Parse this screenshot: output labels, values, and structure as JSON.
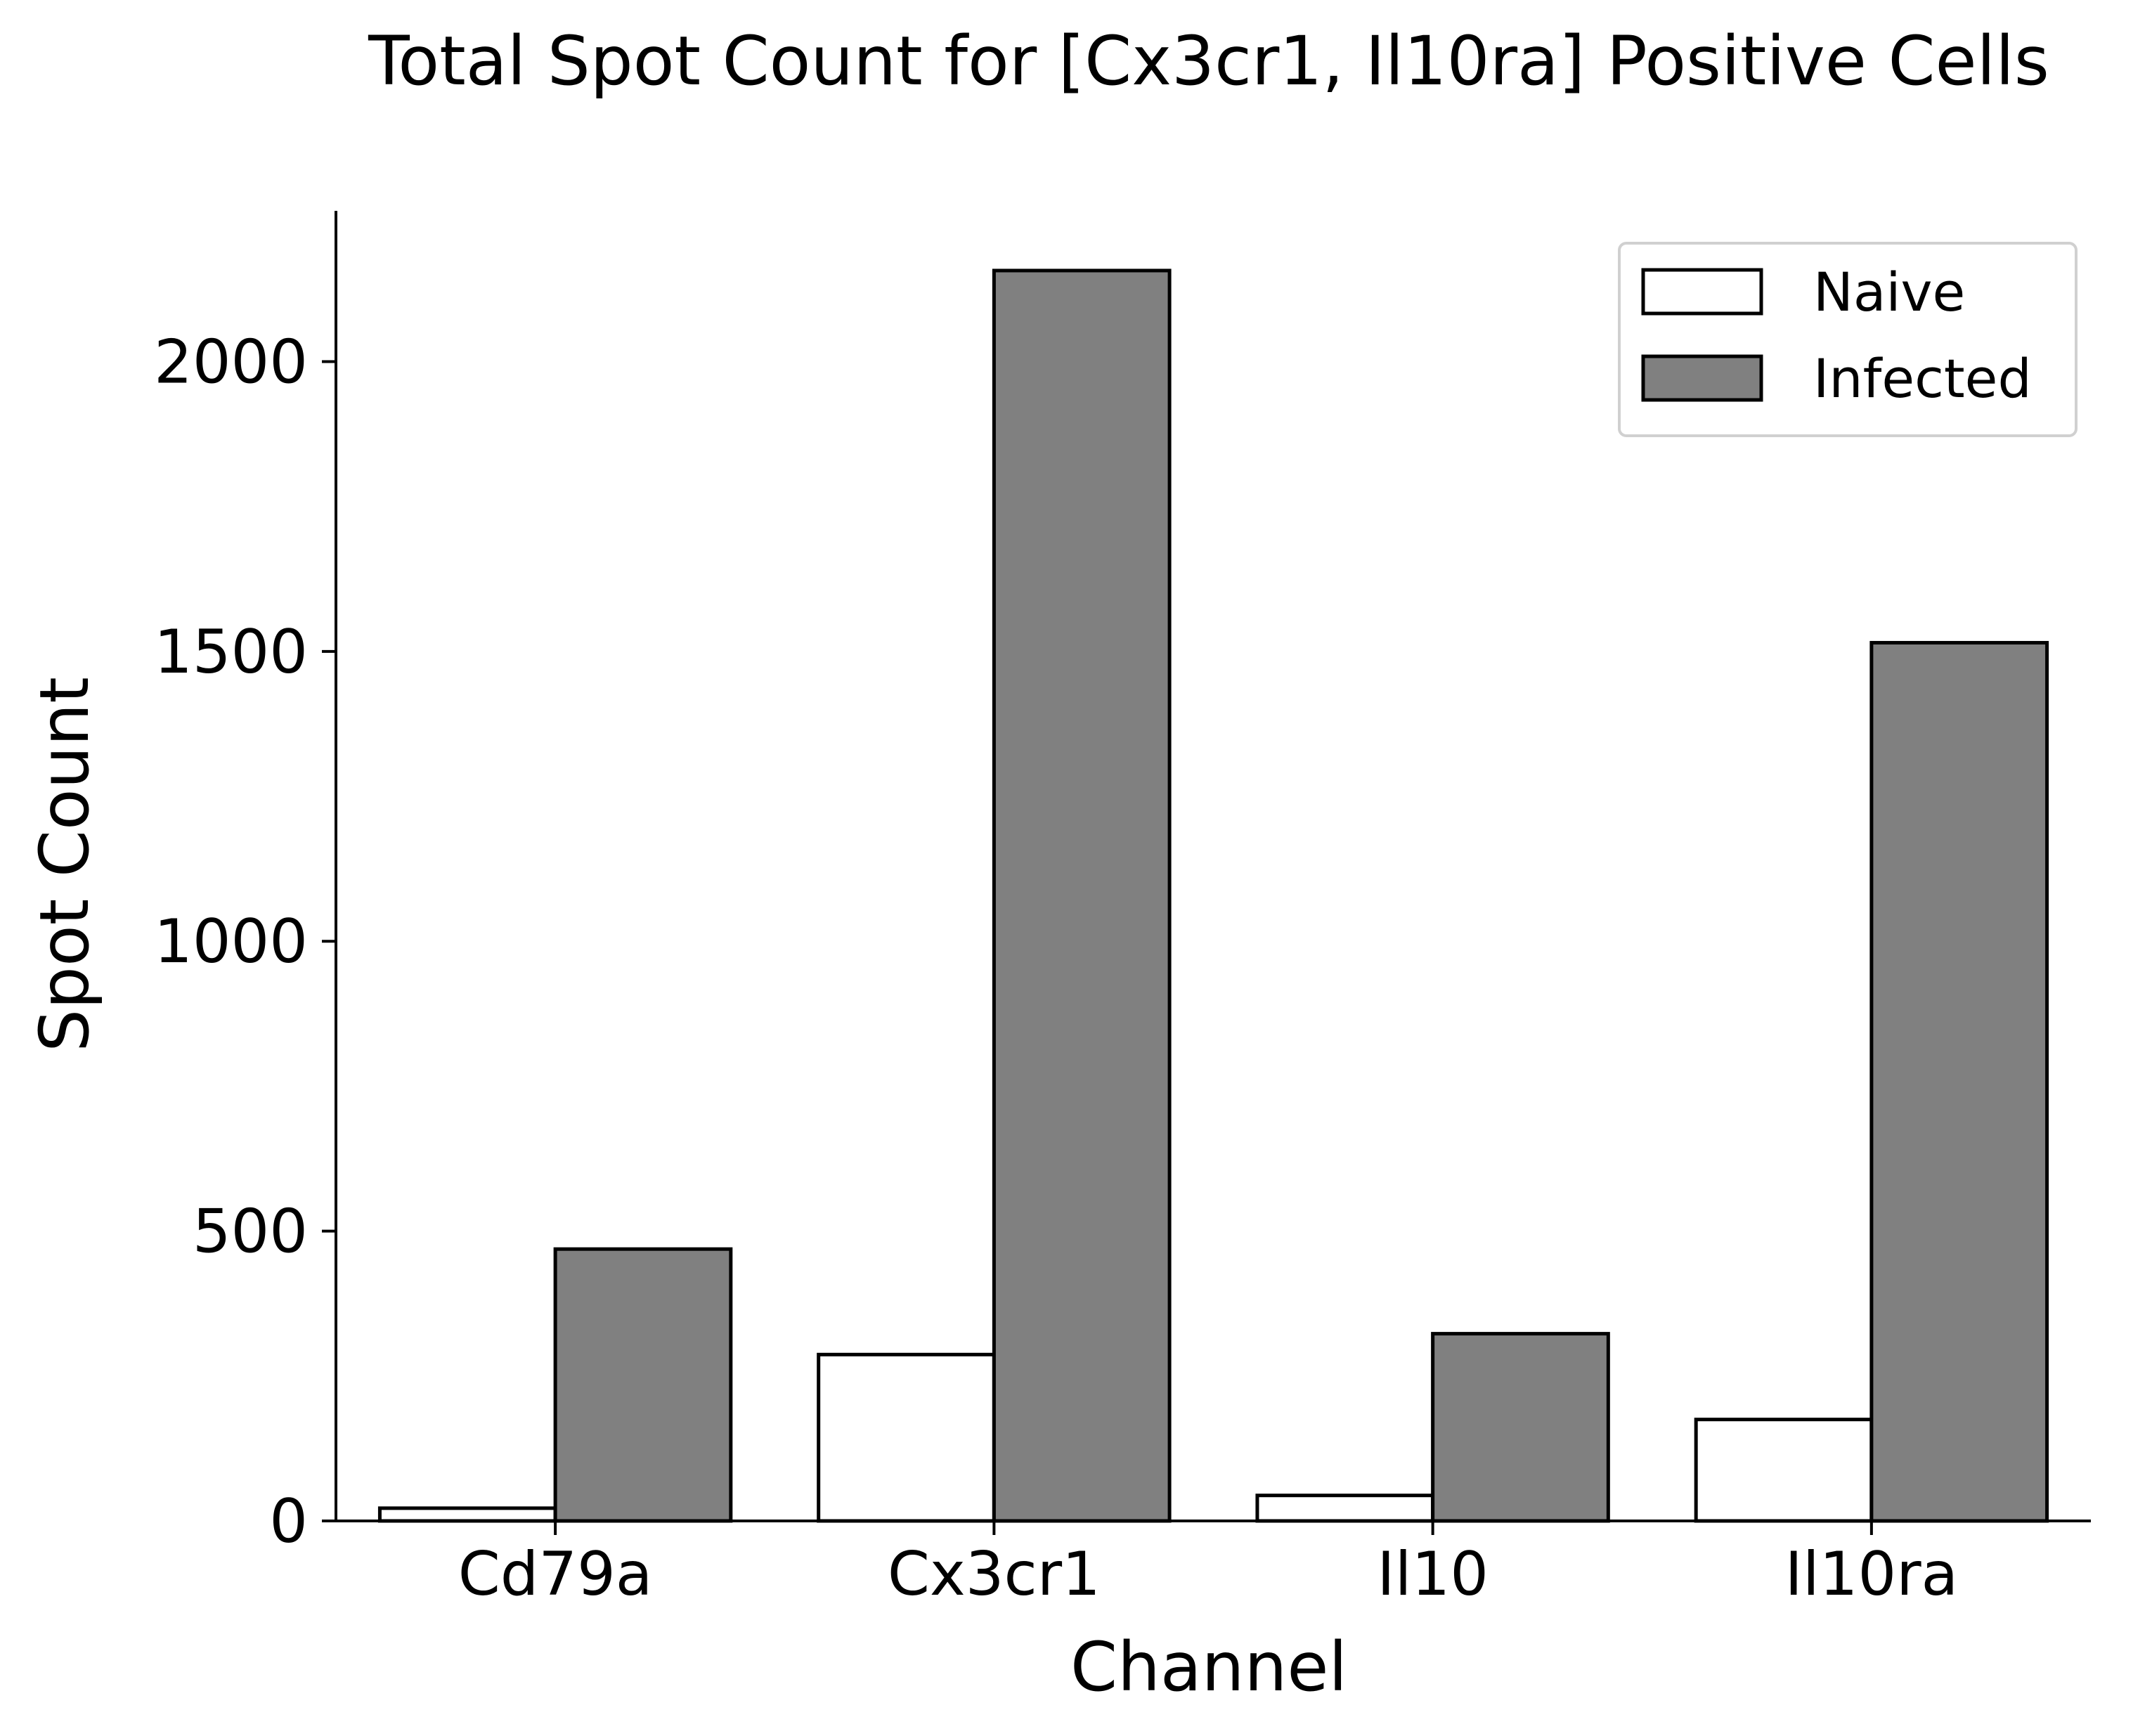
{
  "chart_data": {
    "type": "bar",
    "title": "Total Spot Count for [Cx3cr1, Il10ra] Positive Cells",
    "xlabel": "Channel",
    "ylabel": "Spot Count",
    "categories": [
      "Cd79a",
      "Cx3cr1",
      "Il10",
      "Il10ra"
    ],
    "series": [
      {
        "name": "Naive",
        "values": [
          22,
          287,
          44,
          175
        ],
        "color": "#ffffff"
      },
      {
        "name": "Infected",
        "values": [
          469,
          2157,
          323,
          1515
        ],
        "color": "#808080"
      }
    ],
    "ylim": [
      0,
      2260
    ],
    "yticks": [
      0,
      500,
      1000,
      1500,
      2000
    ],
    "grid": false,
    "legend": "top-right",
    "edgecolor": "#000000"
  }
}
